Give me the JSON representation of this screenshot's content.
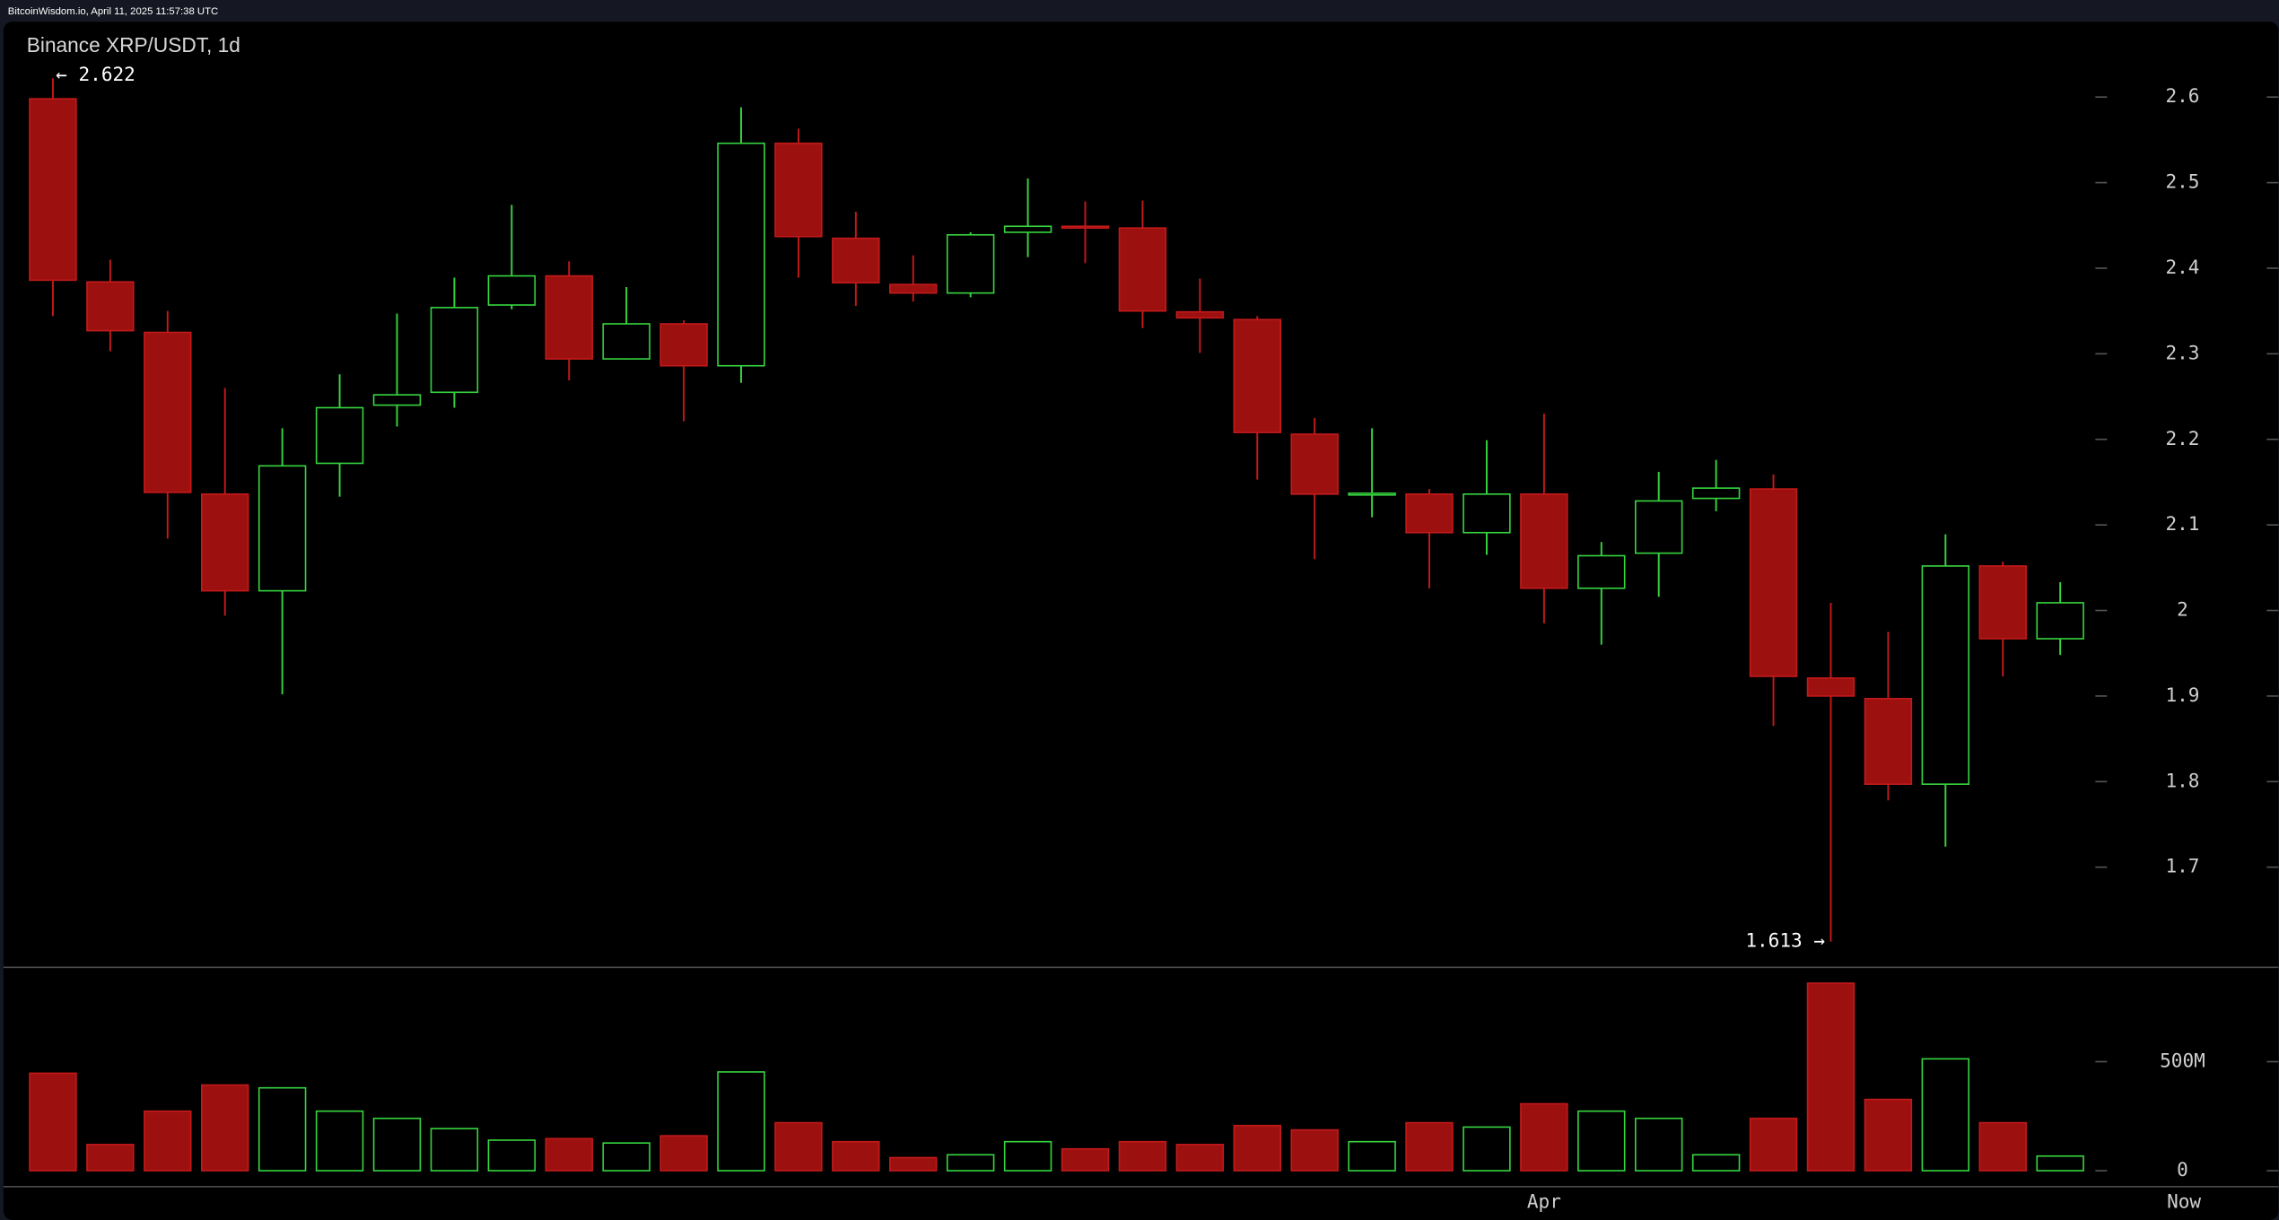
{
  "header": "BitcoinWisdom.io, April 11, 2025 11:57:38 UTC",
  "chart_data": {
    "type": "candlestick",
    "title": "Binance XRP/USDT, 1d",
    "categories": [
      null,
      null,
      null,
      null,
      null,
      null,
      null,
      null,
      null,
      null,
      null,
      null,
      null,
      null,
      null,
      null,
      null,
      null,
      null,
      null,
      null,
      null,
      null,
      null,
      null,
      null,
      "Apr",
      null,
      null,
      null,
      null,
      null,
      null,
      null,
      null,
      null
    ],
    "x_end_label": "Now",
    "open": [
      2.598,
      2.384,
      2.325,
      2.136,
      2.023,
      2.172,
      2.24,
      2.255,
      2.357,
      2.391,
      2.294,
      2.335,
      2.286,
      2.546,
      2.435,
      2.381,
      2.371,
      2.442,
      2.449,
      2.447,
      2.349,
      2.34,
      2.206,
      2.136,
      2.136,
      2.091,
      2.136,
      2.026,
      2.067,
      2.131,
      2.142,
      1.921,
      1.897,
      1.797,
      2.052,
      1.967
    ],
    "high": [
      2.622,
      2.41,
      2.35,
      2.26,
      2.213,
      2.276,
      2.347,
      2.389,
      2.474,
      2.408,
      2.378,
      2.339,
      2.588,
      2.563,
      2.466,
      2.415,
      2.442,
      2.505,
      2.478,
      2.479,
      2.388,
      2.344,
      2.225,
      2.213,
      2.142,
      2.199,
      2.23,
      2.08,
      2.162,
      2.176,
      2.159,
      2.009,
      1.975,
      2.089,
      2.057,
      2.033
    ],
    "low": [
      2.344,
      2.303,
      2.084,
      1.994,
      1.902,
      2.133,
      2.215,
      2.237,
      2.352,
      2.269,
      2.293,
      2.221,
      2.266,
      2.389,
      2.356,
      2.361,
      2.366,
      2.413,
      2.406,
      2.33,
      2.301,
      2.153,
      2.06,
      2.109,
      2.026,
      2.065,
      1.985,
      1.96,
      2.016,
      2.116,
      1.865,
      1.613,
      1.778,
      1.724,
      1.923,
      1.948
    ],
    "close": [
      2.386,
      2.327,
      2.138,
      2.023,
      2.169,
      2.237,
      2.252,
      2.354,
      2.391,
      2.294,
      2.335,
      2.286,
      2.546,
      2.437,
      2.383,
      2.371,
      2.439,
      2.449,
      2.447,
      2.35,
      2.342,
      2.208,
      2.136,
      2.137,
      2.091,
      2.136,
      2.026,
      2.064,
      2.128,
      2.143,
      1.923,
      1.9,
      1.797,
      2.052,
      1.967,
      2.009
    ],
    "up_color": "#36d43f",
    "down_color": "#9c1010",
    "ylim": [
      1.583,
      2.688
    ],
    "yticks": [
      1.7,
      1.8,
      1.9,
      2,
      2.1,
      2.2,
      2.3,
      2.4,
      2.5,
      2.6
    ],
    "annotations": {
      "high": "← 2.622",
      "low": "1.613 →"
    },
    "volume": {
      "values": [
        447000000,
        120000000,
        273000000,
        393000000,
        380000000,
        273000000,
        240000000,
        193000000,
        140000000,
        147000000,
        127000000,
        160000000,
        453000000,
        220000000,
        133000000,
        60000000,
        73000000,
        133000000,
        100000000,
        133000000,
        120000000,
        207000000,
        187000000,
        133000000,
        220000000,
        200000000,
        307000000,
        273000000,
        240000000,
        73000000,
        240000000,
        860000000,
        327000000,
        513000000,
        220000000,
        67000000
      ],
      "ylim": [
        -73000000,
        933000000
      ],
      "yticks": [
        0,
        {
          "value": 500000000,
          "label": "500M"
        }
      ]
    }
  }
}
